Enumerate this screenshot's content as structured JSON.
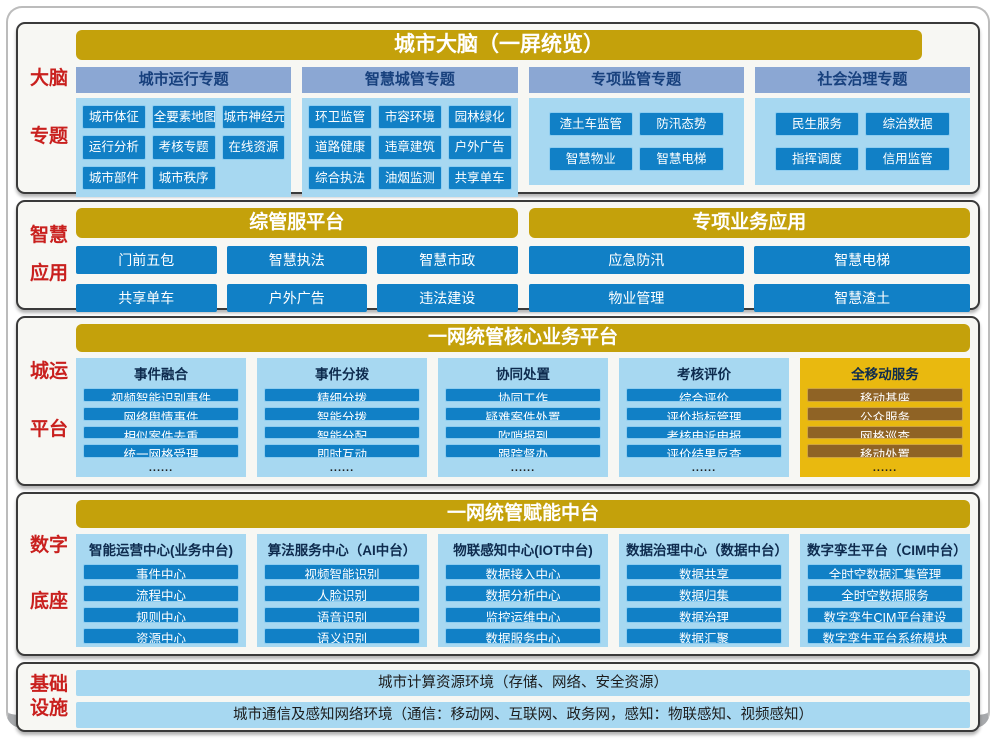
{
  "colors": {
    "gold": "#c4a10b",
    "button_blue": "#1180c6",
    "panel_blue": "#a7d8f1",
    "header_steel": "#8ba7d3",
    "label_red": "#c9201e",
    "mobile_gold_panel": "#e9b90f",
    "mobile_gold_button": "#8f6325"
  },
  "sections": [
    {
      "id": "brain",
      "type": "topics",
      "label_lines": [
        "大脑",
        "专题"
      ],
      "title": "城市大脑（一屏统览）",
      "columns": [
        {
          "header": "城市运行专题",
          "cols": 3,
          "buttons": [
            "城市体征",
            "全要素地图",
            "城市神经元",
            "运行分析",
            "考核专题",
            "在线资源",
            "城市部件",
            "城市秩序"
          ]
        },
        {
          "header": "智慧城管专题",
          "cols": 3,
          "buttons": [
            "环卫监管",
            "市容环境",
            "园林绿化",
            "道路健康",
            "违章建筑",
            "户外广告",
            "综合执法",
            "油烟监测",
            "共享单车"
          ]
        },
        {
          "header": "专项监管专题",
          "cols": 2,
          "buttons": [
            "渣土车监管",
            "防汛态势",
            "智慧物业",
            "智慧电梯"
          ]
        },
        {
          "header": "社会治理专题",
          "cols": 2,
          "buttons": [
            "民生服务",
            "综治数据",
            "指挥调度",
            "信用监管"
          ]
        }
      ]
    },
    {
      "id": "apps",
      "type": "groups",
      "label_lines": [
        "智慧",
        "应用"
      ],
      "groups": [
        {
          "title": "综管服平台",
          "cols": 3,
          "buttons": [
            "门前五包",
            "智慧执法",
            "智慧市政",
            "共享单车",
            "户外广告",
            "违法建设"
          ]
        },
        {
          "title": "专项业务应用",
          "cols": 2,
          "buttons": [
            "应急防汛",
            "智慧电梯",
            "物业管理",
            "智慧渣土"
          ]
        }
      ]
    },
    {
      "id": "core",
      "type": "platform",
      "label_lines": [
        "城运",
        "平台"
      ],
      "title": "一网统管核心业务平台",
      "columns": [
        {
          "header": "事件融合",
          "theme": "blue",
          "buttons": [
            "视频智能识别事件",
            "网络舆情事件",
            "相似案件去重",
            "统一网格受理"
          ],
          "more": "......"
        },
        {
          "header": "事件分拨",
          "theme": "blue",
          "buttons": [
            "精细分拨",
            "智能分拨",
            "智能分配",
            "即时互动"
          ],
          "more": "......"
        },
        {
          "header": "协同处置",
          "theme": "blue",
          "buttons": [
            "协同工作",
            "疑难案件处置",
            "吹哨报到",
            "跟踪督办"
          ],
          "more": "......"
        },
        {
          "header": "考核评价",
          "theme": "blue",
          "buttons": [
            "综合评价",
            "评价指标管理",
            "考核申诉申报",
            "评价结果反查"
          ],
          "more": "......"
        },
        {
          "header": "全移动服务",
          "theme": "gold",
          "buttons": [
            "移动基座",
            "公众服务",
            "网格巡查",
            "移动处置"
          ],
          "more": "......"
        }
      ]
    },
    {
      "id": "middle",
      "type": "platform",
      "label_lines": [
        "数字",
        "底座"
      ],
      "title": "一网统管赋能中台",
      "columns": [
        {
          "header": "智能运营中心(业务中台)",
          "theme": "blue",
          "buttons": [
            "事件中心",
            "流程中心",
            "规则中心",
            "资源中心"
          ]
        },
        {
          "header": "算法服务中心（AI中台）",
          "theme": "blue",
          "buttons": [
            "视频智能识别",
            "人脸识别",
            "语音识别",
            "语义识别"
          ]
        },
        {
          "header": "物联感知中心(IOT中台)",
          "theme": "blue",
          "buttons": [
            "数据接入中心",
            "数据分析中心",
            "监控运维中心",
            "数据服务中心"
          ]
        },
        {
          "header": "数据治理中心（数据中台）",
          "theme": "blue",
          "buttons": [
            "数据共享",
            "数据归集",
            "数据治理",
            "数据汇聚"
          ]
        },
        {
          "header": "数字孪生平台（CIM中台）",
          "theme": "blue",
          "buttons": [
            "全时空数据汇集管理",
            "全时空数据服务",
            "数字孪生CIM平台建设",
            "数字孪生平台系统模块"
          ]
        }
      ]
    },
    {
      "id": "infra",
      "type": "bars",
      "label_lines": [
        "基础",
        "设施"
      ],
      "bars": [
        "城市计算资源环境（存储、网络、安全资源）",
        "城市通信及感知网络环境（通信：移动网、互联网、政务网，感知：物联感知、视频感知）"
      ]
    }
  ]
}
